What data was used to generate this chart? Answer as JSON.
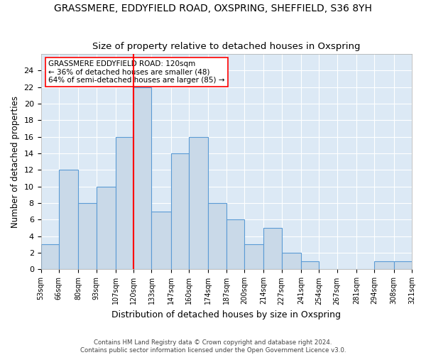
{
  "title1": "GRASSMERE, EDDYFIELD ROAD, OXSPRING, SHEFFIELD, S36 8YH",
  "title2": "Size of property relative to detached houses in Oxspring",
  "xlabel": "Distribution of detached houses by size in Oxspring",
  "ylabel": "Number of detached properties",
  "bin_edges": [
    53,
    66,
    80,
    93,
    107,
    120,
    133,
    147,
    160,
    174,
    187,
    200,
    214,
    227,
    241,
    254,
    267,
    281,
    294,
    308,
    321
  ],
  "bin_labels": [
    "53sqm",
    "66sqm",
    "80sqm",
    "93sqm",
    "107sqm",
    "120sqm",
    "133sqm",
    "147sqm",
    "160sqm",
    "174sqm",
    "187sqm",
    "200sqm",
    "214sqm",
    "227sqm",
    "241sqm",
    "254sqm",
    "267sqm",
    "281sqm",
    "294sqm",
    "308sqm",
    "321sqm"
  ],
  "counts": [
    3,
    12,
    8,
    10,
    16,
    22,
    7,
    14,
    16,
    8,
    6,
    3,
    5,
    2,
    1,
    0,
    0,
    0,
    1,
    1
  ],
  "bar_facecolor": "#c9d9e8",
  "bar_edgecolor": "#5b9bd5",
  "vline_x": 120,
  "vline_color": "red",
  "annotation_text": "GRASSMERE EDDYFIELD ROAD: 120sqm\n← 36% of detached houses are smaller (48)\n64% of semi-detached houses are larger (85) →",
  "annotation_box_color": "white",
  "annotation_box_edgecolor": "red",
  "ylim": [
    0,
    26
  ],
  "yticks": [
    0,
    2,
    4,
    6,
    8,
    10,
    12,
    14,
    16,
    18,
    20,
    22,
    24
  ],
  "footer1": "Contains HM Land Registry data © Crown copyright and database right 2024.",
  "footer2": "Contains public sector information licensed under the Open Government Licence v3.0.",
  "background_color": "#dce9f5",
  "grid_color": "white",
  "fig_width": 6.0,
  "fig_height": 5.0,
  "fig_dpi": 100
}
